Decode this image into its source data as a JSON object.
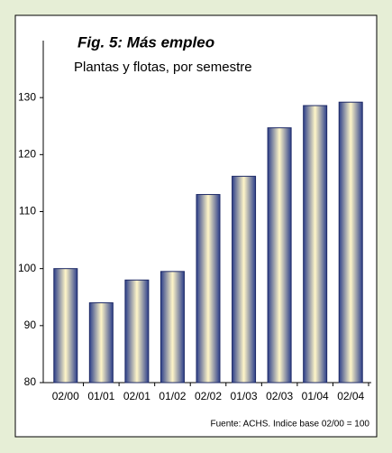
{
  "chart_data": {
    "type": "bar",
    "title": "Fig. 5: Más empleo",
    "subtitle": "Plantas y flotas, por semestre",
    "source": "Fuente: ACHS. Indice base 02/00 = 100",
    "categories": [
      "02/00",
      "01/01",
      "02/01",
      "01/02",
      "02/02",
      "01/03",
      "02/03",
      "01/04",
      "02/04"
    ],
    "values": [
      100,
      94,
      98,
      99.5,
      113,
      116.2,
      124.7,
      128.6,
      129.2
    ],
    "color": "#1e2a66",
    "ylim": [
      80,
      140
    ],
    "yticks": [
      80,
      90,
      100,
      110,
      120,
      130
    ]
  }
}
